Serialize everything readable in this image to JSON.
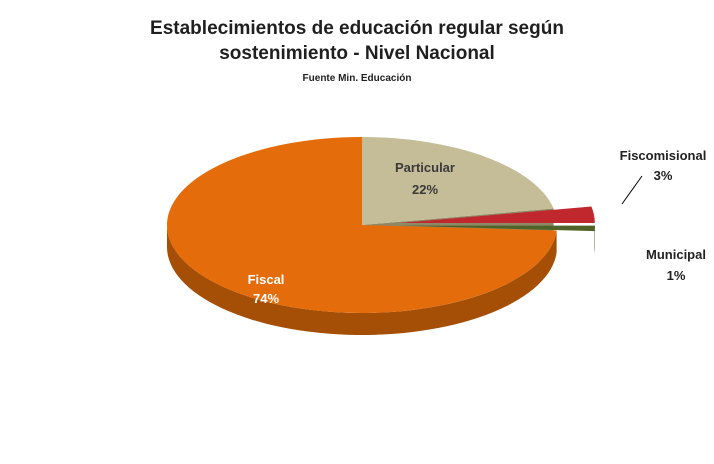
{
  "chart_data": {
    "type": "pie",
    "title_line1": "Establecimientos de educación regular según",
    "title_line2": "sostenimiento -  Nivel Nacional",
    "subtitle": "Fuente Min. Educación",
    "three_d": true,
    "slices": [
      {
        "name": "Fiscal",
        "label": "74%",
        "value": 74,
        "color": "#E46C0A",
        "side": "#A44E06"
      },
      {
        "name": "Particular",
        "label": "22%",
        "value": 22,
        "color": "#C4BD97",
        "side": "#8E8866"
      },
      {
        "name": "Fiscomisional",
        "label": "3%",
        "value": 3,
        "color": "#C0282D",
        "side": "#8B1D21",
        "exploded": true
      },
      {
        "name": "Municipal",
        "label": "1%",
        "value": 1,
        "color": "#4F6228",
        "side": "#3B4A1E",
        "exploded": true
      }
    ]
  }
}
